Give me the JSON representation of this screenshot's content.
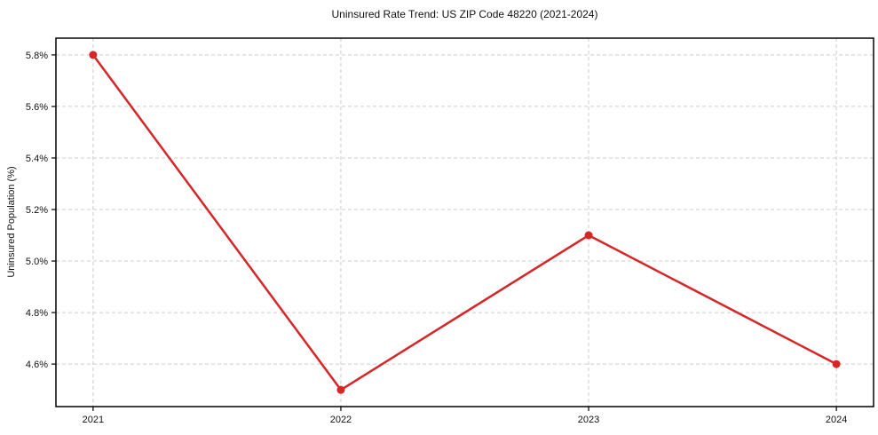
{
  "chart_data": {
    "type": "line",
    "title": "Uninsured Rate Trend: US ZIP Code 48220 (2021-2024)",
    "xlabel": "",
    "ylabel": "Uninsured Population (%)",
    "x": [
      2021,
      2022,
      2023,
      2024
    ],
    "x_tick_labels": [
      "2021",
      "2022",
      "2023",
      "2024"
    ],
    "values": [
      5.8,
      4.5,
      5.1,
      4.6
    ],
    "y_ticks": [
      4.6,
      4.8,
      5.0,
      5.2,
      5.4,
      5.6,
      5.8
    ],
    "y_tick_labels": [
      "4.6%",
      "4.8%",
      "5.0%",
      "5.2%",
      "5.4%",
      "5.6%",
      "5.8%"
    ],
    "xlim": [
      2020.85,
      2024.15
    ],
    "ylim": [
      4.435,
      5.865
    ],
    "grid": true,
    "grid_style": "dashed",
    "legend_position": "none",
    "line_color": "#d62728",
    "marker_color": "#d62728",
    "marker_shape": "circle",
    "grid_color": "#cccccc",
    "axis_color": "#000000",
    "text_color": "#111111"
  }
}
